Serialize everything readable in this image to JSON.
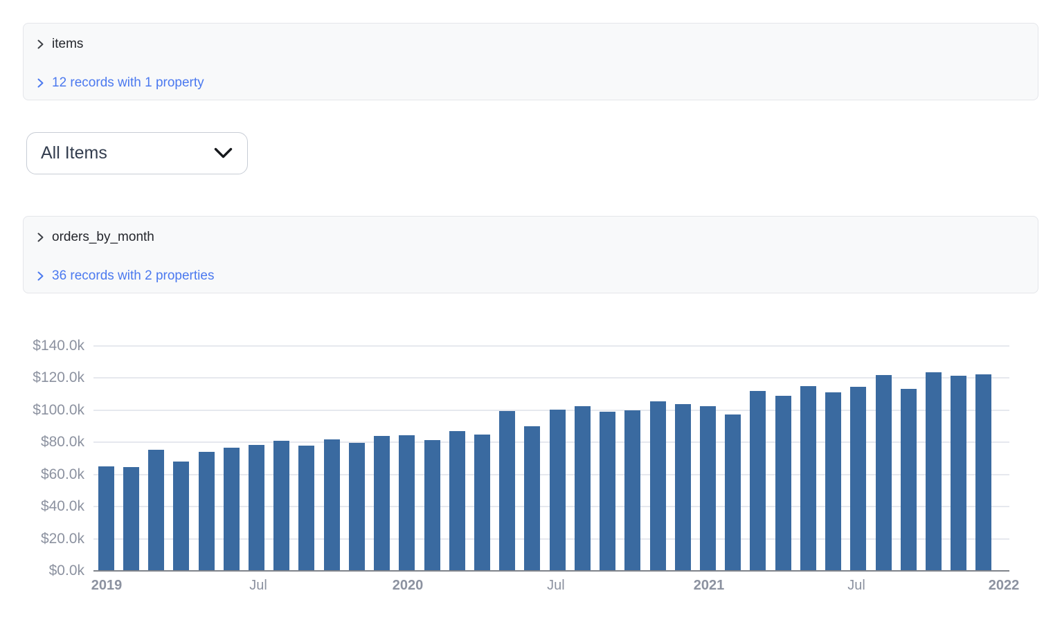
{
  "panels": [
    {
      "title": "items",
      "summary_link": "12 records with 1 property"
    },
    {
      "title": "orders_by_month",
      "summary_link": "36 records with 2 properties"
    }
  ],
  "item_filter": {
    "selected_option": "All Items"
  },
  "colors": {
    "link_blue": "#4b79ef",
    "bar_blue": "#3a6aa0",
    "axis_label_gray": "#8c92a0",
    "gridline": "#e6e8ee",
    "panel_bg": "#f8f9fa",
    "panel_border": "#e4e6ea"
  },
  "chart_data": {
    "type": "bar",
    "title": "",
    "xlabel": "",
    "ylabel": "",
    "unit": "USD thousands (k) per month",
    "grid": true,
    "legend_position": "none",
    "ylim": [
      0,
      140
    ],
    "x": [
      "2019-01",
      "2019-02",
      "2019-03",
      "2019-04",
      "2019-05",
      "2019-06",
      "2019-07",
      "2019-08",
      "2019-09",
      "2019-10",
      "2019-11",
      "2019-12",
      "2020-01",
      "2020-02",
      "2020-03",
      "2020-04",
      "2020-05",
      "2020-06",
      "2020-07",
      "2020-08",
      "2020-09",
      "2020-10",
      "2020-11",
      "2020-12",
      "2021-01",
      "2021-02",
      "2021-03",
      "2021-04",
      "2021-05",
      "2021-06",
      "2021-07",
      "2021-08",
      "2021-09",
      "2021-10",
      "2021-11",
      "2021-12"
    ],
    "values": [
      65,
      64.5,
      75.5,
      68,
      74,
      76.5,
      78.5,
      81,
      78,
      82,
      79.5,
      84,
      84.5,
      81.5,
      87,
      85,
      99.5,
      90,
      100.5,
      102.5,
      99,
      100,
      105.5,
      104,
      102.5,
      97.5,
      112,
      109,
      115,
      111,
      114.5,
      122,
      113.5,
      123.5,
      121.5,
      122.5
    ],
    "yticks": [
      {
        "value": 0,
        "label": "$0.0k"
      },
      {
        "value": 20,
        "label": "$20.0k"
      },
      {
        "value": 40,
        "label": "$40.0k"
      },
      {
        "value": 60,
        "label": "$60.0k"
      },
      {
        "value": 80,
        "label": "$80.0k"
      },
      {
        "value": 100,
        "label": "$100.0k"
      },
      {
        "value": 120,
        "label": "$120.0k"
      },
      {
        "value": 140,
        "label": "$140.0k"
      }
    ],
    "xticks": [
      {
        "label": "2019",
        "pos_pct": 1.44,
        "bold": true
      },
      {
        "label": "Jul",
        "pos_pct": 17.99,
        "bold": false
      },
      {
        "label": "2020",
        "pos_pct": 34.32,
        "bold": true
      },
      {
        "label": "Jul",
        "pos_pct": 50.49,
        "bold": false
      },
      {
        "label": "2021",
        "pos_pct": 67.2,
        "bold": true
      },
      {
        "label": "Jul",
        "pos_pct": 83.3,
        "bold": false
      },
      {
        "label": "2022",
        "pos_pct": 99.4,
        "bold": true
      }
    ]
  }
}
